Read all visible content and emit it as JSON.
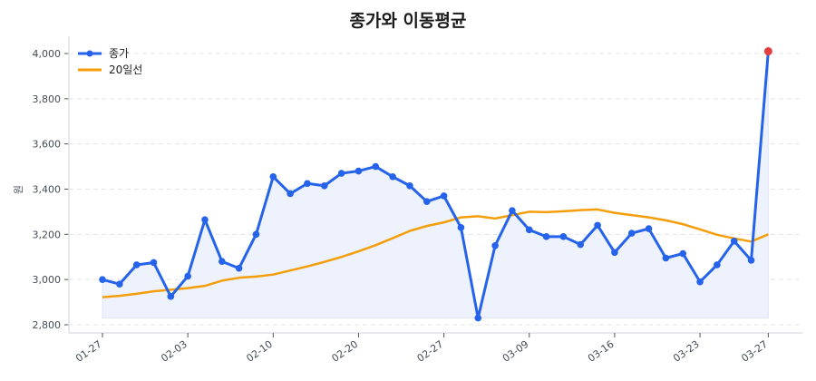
{
  "chart_data": {
    "type": "line",
    "title": "종가와 이동평균",
    "xlabel": "",
    "ylabel": "원",
    "ylim": [
      2780,
      4060
    ],
    "yticks": [
      2800,
      3000,
      3200,
      3400,
      3600,
      3800,
      4000
    ],
    "ytick_labels": [
      "2,800",
      "3,000",
      "3,200",
      "3,400",
      "3,600",
      "3,800",
      "4,000"
    ],
    "xtick_labels": [
      "01-27",
      "02-03",
      "02-10",
      "02-20",
      "02-27",
      "03-09",
      "03-16",
      "03-23",
      "03-27"
    ],
    "xtick_indices": [
      0,
      5,
      10,
      15,
      20,
      25,
      30,
      35,
      39
    ],
    "grid": true,
    "legend_position": "upper left",
    "series": [
      {
        "name": "종가",
        "color": "#2563eb",
        "marker": "circle",
        "fill": true,
        "fill_color": "#eef2fc",
        "values": [
          3000,
          2980,
          3065,
          3075,
          2925,
          3015,
          3265,
          3080,
          3050,
          3200,
          3455,
          3380,
          3425,
          3415,
          3470,
          3480,
          3500,
          3455,
          3415,
          3345,
          3370,
          3230,
          2830,
          3150,
          3305,
          3220,
          3190,
          3190,
          3155,
          3240,
          3120,
          3205,
          3225,
          3095,
          3115,
          2990,
          3065,
          3170,
          3085,
          4010
        ],
        "highlight_last": {
          "color": "#e53e3e"
        }
      },
      {
        "name": "20일선",
        "color": "#f59e0b",
        "marker": "none",
        "values": [
          2922,
          2928,
          2937,
          2948,
          2955,
          2962,
          2972,
          2995,
          3008,
          3013,
          3022,
          3040,
          3058,
          3078,
          3100,
          3125,
          3152,
          3183,
          3215,
          3237,
          3253,
          3275,
          3280,
          3270,
          3285,
          3300,
          3298,
          3302,
          3307,
          3310,
          3295,
          3285,
          3275,
          3262,
          3245,
          3222,
          3198,
          3182,
          3168,
          3200
        ]
      }
    ]
  },
  "legend": {
    "items": [
      {
        "label": "종가"
      },
      {
        "label": "20일선"
      }
    ]
  }
}
